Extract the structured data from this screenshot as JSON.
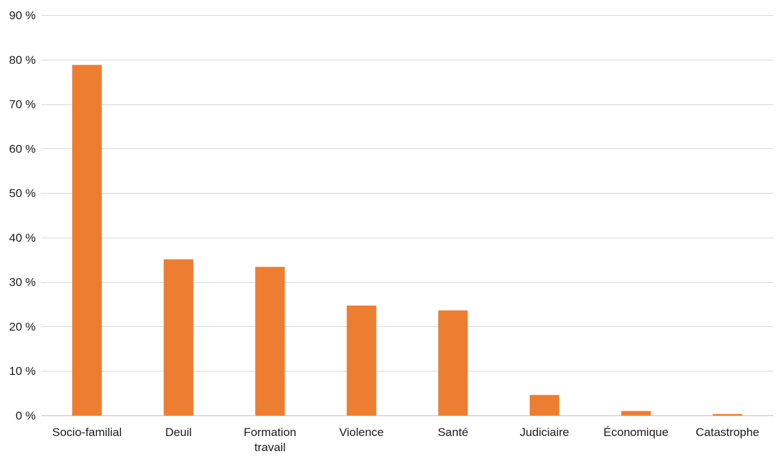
{
  "chart_data": {
    "type": "bar",
    "title": "",
    "xlabel": "",
    "ylabel": "",
    "categories": [
      "Socio-familial",
      "Deuil",
      "Formation travail",
      "Violence",
      "Santé",
      "Judiciaire",
      "Économique",
      "Catastrophe"
    ],
    "category_lines": [
      [
        "Socio-familial"
      ],
      [
        "Deuil"
      ],
      [
        "Formation",
        "travail"
      ],
      [
        "Violence"
      ],
      [
        "Santé"
      ],
      [
        "Judiciaire"
      ],
      [
        "Économique"
      ],
      [
        "Catastrophe"
      ]
    ],
    "values": [
      78.8,
      35.1,
      33.4,
      24.7,
      23.6,
      4.6,
      1.0,
      0.3
    ],
    "ylim": [
      0,
      90
    ],
    "yticks": [
      0,
      10,
      20,
      30,
      40,
      50,
      60,
      70,
      80,
      90
    ],
    "ytick_labels": [
      "0 %",
      "10 %",
      "20 %",
      "30 %",
      "40 %",
      "50 %",
      "60 %",
      "70 %",
      "80 %",
      "90 %"
    ],
    "grid": true,
    "legend": "none",
    "colors": {
      "bar": "#ED7D31",
      "grid": "#D9D9D9",
      "axis": "#BFBFBF",
      "text": "#1a1a1a"
    }
  }
}
